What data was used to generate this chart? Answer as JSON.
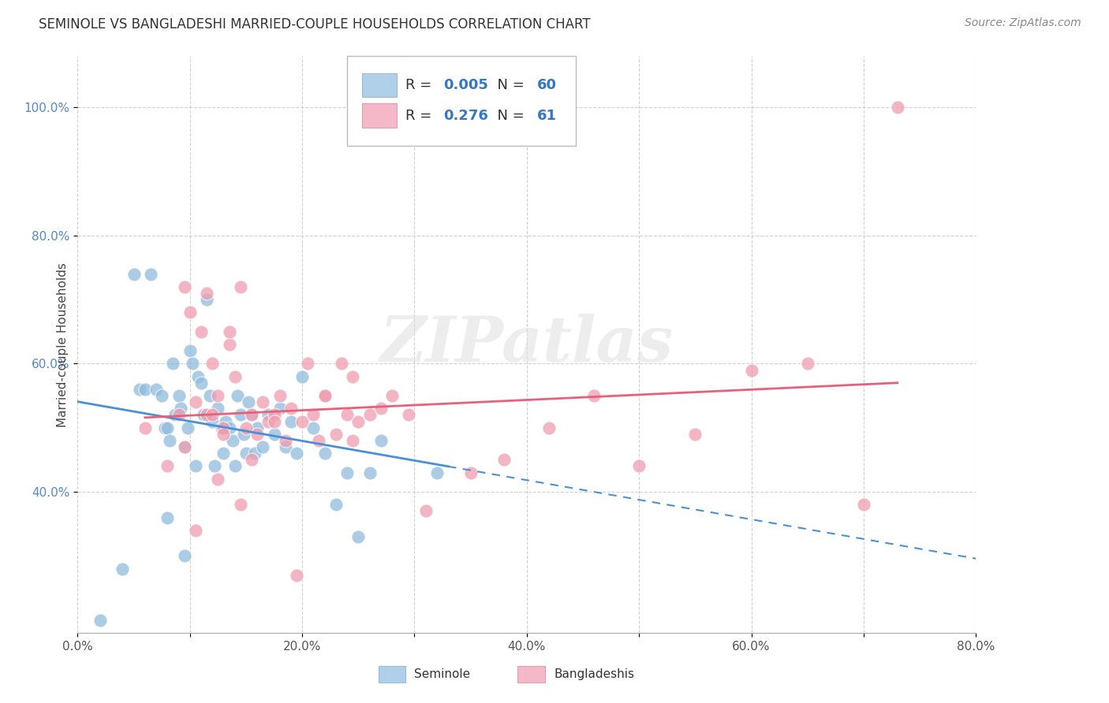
{
  "title": "SEMINOLE VS BANGLADESHI MARRIED-COUPLE HOUSEHOLDS CORRELATION CHART",
  "source": "Source: ZipAtlas.com",
  "xlim": [
    0.0,
    0.8
  ],
  "ylim": [
    0.18,
    1.08
  ],
  "ytick_vals": [
    1.0,
    0.8,
    0.6,
    0.4
  ],
  "ytick_labels": [
    "100.0%",
    "80.0%",
    "60.0%",
    "40.0%"
  ],
  "xtick_vals": [
    0.0,
    0.1,
    0.2,
    0.3,
    0.4,
    0.5,
    0.6,
    0.7,
    0.8
  ],
  "xtick_labels": [
    "0.0%",
    "",
    "20.0%",
    "",
    "40.0%",
    "",
    "60.0%",
    "",
    "80.0%"
  ],
  "watermark_text": "ZIPatlas",
  "seminole_color": "#8fbcdb",
  "bangladeshi_color": "#f09cb0",
  "seminole_line_color": "#4a90d9",
  "bangladeshi_line_color": "#e8607a",
  "legend_patch_sem": "#b0cfe8",
  "legend_patch_ban": "#f5b8c8",
  "seminole_x": [
    0.02,
    0.04,
    0.05,
    0.055,
    0.06,
    0.065,
    0.07,
    0.075,
    0.078,
    0.08,
    0.082,
    0.085,
    0.087,
    0.09,
    0.092,
    0.095,
    0.098,
    0.1,
    0.102,
    0.105,
    0.107,
    0.11,
    0.112,
    0.115,
    0.118,
    0.12,
    0.122,
    0.125,
    0.128,
    0.13,
    0.132,
    0.135,
    0.138,
    0.14,
    0.142,
    0.145,
    0.148,
    0.15,
    0.152,
    0.155,
    0.158,
    0.16,
    0.165,
    0.17,
    0.175,
    0.18,
    0.185,
    0.19,
    0.195,
    0.2,
    0.21,
    0.22,
    0.23,
    0.24,
    0.25,
    0.26,
    0.27,
    0.32,
    0.08,
    0.095
  ],
  "seminole_y": [
    0.2,
    0.28,
    0.74,
    0.56,
    0.56,
    0.74,
    0.56,
    0.55,
    0.5,
    0.5,
    0.48,
    0.6,
    0.52,
    0.55,
    0.53,
    0.47,
    0.5,
    0.62,
    0.6,
    0.44,
    0.58,
    0.57,
    0.52,
    0.7,
    0.55,
    0.51,
    0.44,
    0.53,
    0.5,
    0.46,
    0.51,
    0.5,
    0.48,
    0.44,
    0.55,
    0.52,
    0.49,
    0.46,
    0.54,
    0.52,
    0.46,
    0.5,
    0.47,
    0.52,
    0.49,
    0.53,
    0.47,
    0.51,
    0.46,
    0.58,
    0.5,
    0.46,
    0.38,
    0.43,
    0.33,
    0.43,
    0.48,
    0.43,
    0.36,
    0.3
  ],
  "bangladeshi_x": [
    0.06,
    0.08,
    0.09,
    0.095,
    0.1,
    0.105,
    0.11,
    0.115,
    0.12,
    0.125,
    0.13,
    0.135,
    0.14,
    0.145,
    0.15,
    0.155,
    0.16,
    0.165,
    0.17,
    0.175,
    0.18,
    0.185,
    0.19,
    0.2,
    0.205,
    0.21,
    0.215,
    0.22,
    0.23,
    0.235,
    0.24,
    0.245,
    0.25,
    0.26,
    0.27,
    0.28,
    0.295,
    0.31,
    0.35,
    0.38,
    0.42,
    0.46,
    0.5,
    0.55,
    0.6,
    0.65,
    0.7,
    0.73,
    0.095,
    0.105,
    0.115,
    0.125,
    0.135,
    0.155,
    0.175,
    0.195,
    0.22,
    0.245,
    0.12,
    0.13,
    0.145
  ],
  "bangladeshi_y": [
    0.5,
    0.44,
    0.52,
    0.72,
    0.68,
    0.54,
    0.65,
    0.52,
    0.6,
    0.55,
    0.5,
    0.63,
    0.58,
    0.72,
    0.5,
    0.52,
    0.49,
    0.54,
    0.51,
    0.52,
    0.55,
    0.48,
    0.53,
    0.51,
    0.6,
    0.52,
    0.48,
    0.55,
    0.49,
    0.6,
    0.52,
    0.48,
    0.51,
    0.52,
    0.53,
    0.55,
    0.52,
    0.37,
    0.43,
    0.45,
    0.5,
    0.55,
    0.44,
    0.49,
    0.59,
    0.6,
    0.38,
    1.0,
    0.47,
    0.34,
    0.71,
    0.42,
    0.65,
    0.45,
    0.51,
    0.27,
    0.55,
    0.58,
    0.52,
    0.49,
    0.38
  ],
  "background_color": "#ffffff",
  "grid_color": "#cccccc",
  "title_fontsize": 12,
  "source_fontsize": 10,
  "tick_fontsize": 11,
  "ylabel_fontsize": 11,
  "legend_fontsize": 13
}
